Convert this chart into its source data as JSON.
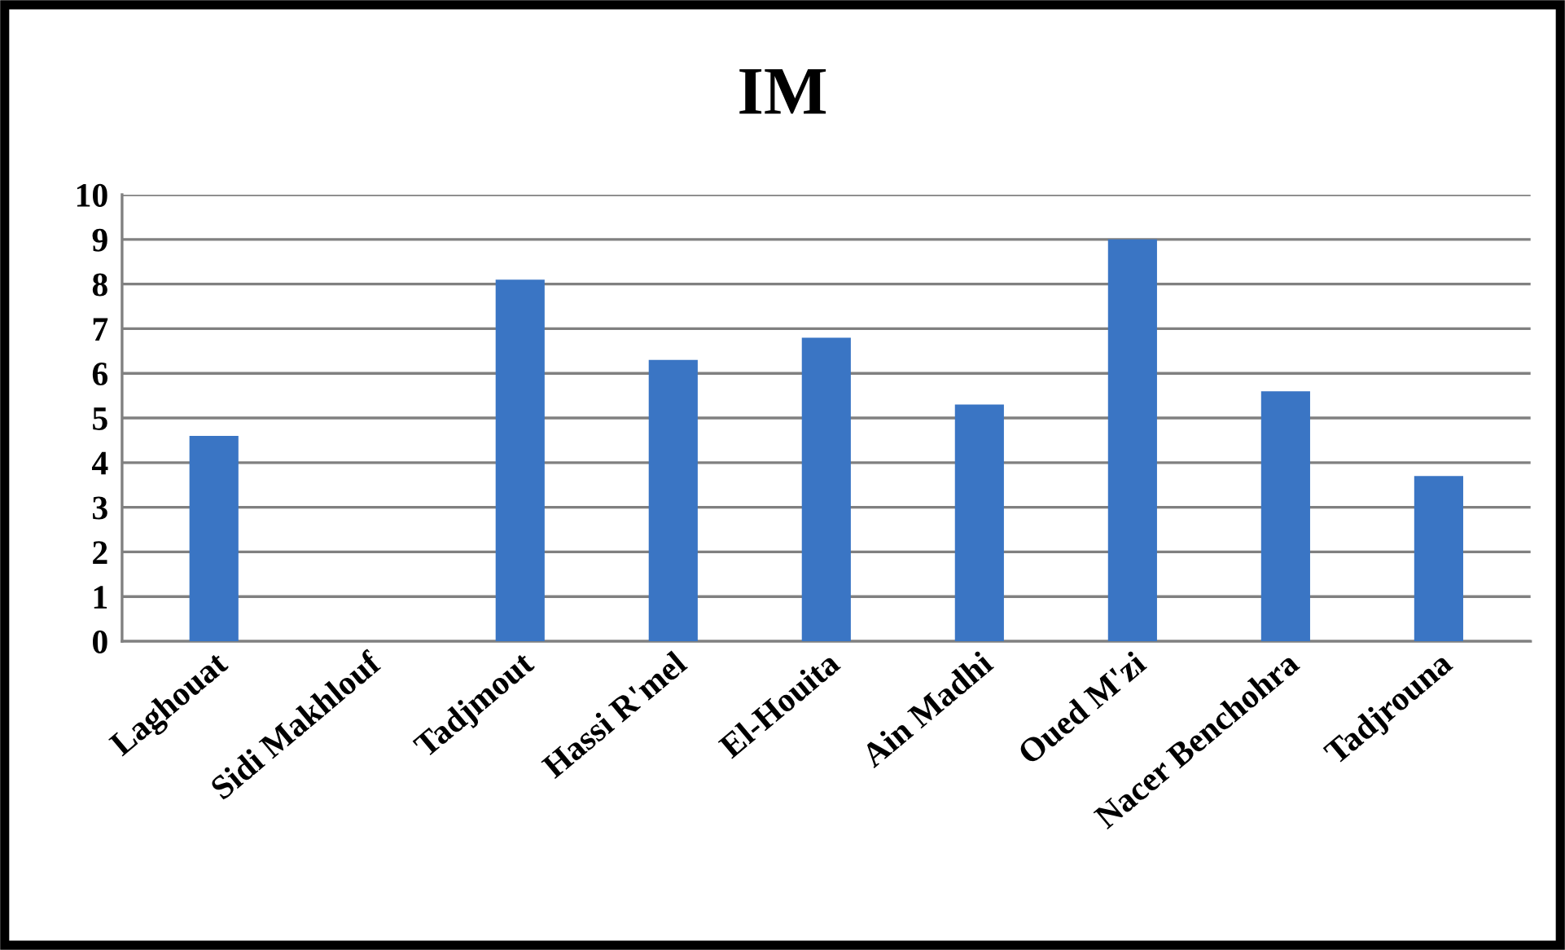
{
  "chart_data": {
    "type": "bar",
    "title": "IM",
    "categories": [
      "Laghouat",
      "Sidi Makhlouf",
      "Tadjmout",
      "Hassi R'mel",
      "El-Houita",
      "Ain Madhi",
      "Oued M'zi",
      "Nacer Benchohra",
      "Tadjrouna"
    ],
    "values": [
      4.6,
      0,
      8.1,
      6.3,
      6.8,
      5.3,
      9.0,
      5.6,
      3.7
    ],
    "color": "#3a75c4",
    "ylim": [
      0,
      10
    ],
    "yticks": [
      0,
      1,
      2,
      3,
      4,
      5,
      6,
      7,
      8,
      9,
      10
    ],
    "grid": "y"
  }
}
